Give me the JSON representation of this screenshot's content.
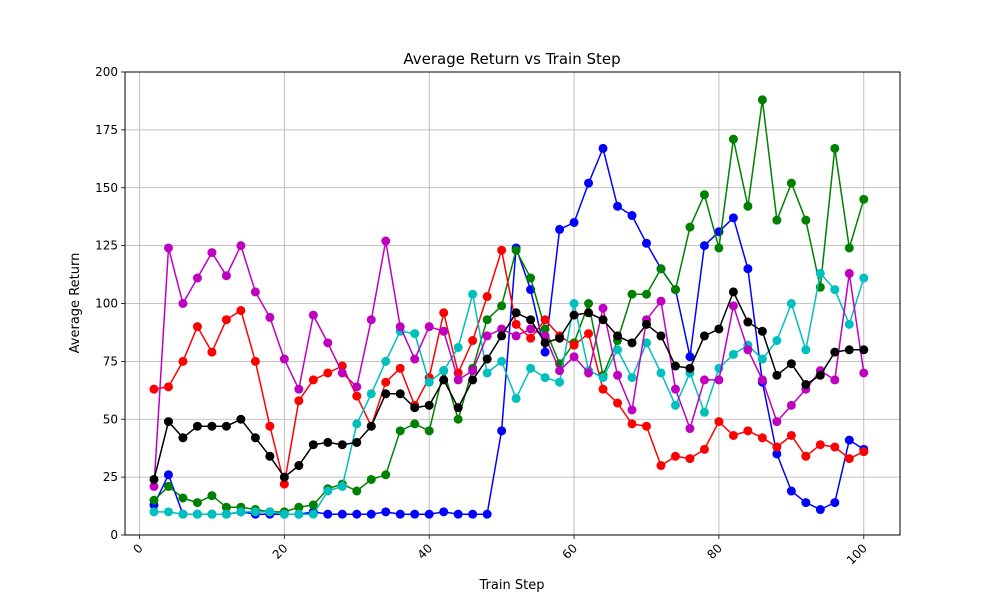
{
  "chart_data": {
    "type": "line",
    "title": "Average Return vs Train Step",
    "xlabel": "Train Step",
    "ylabel": "Average Return",
    "xlim": [
      -2,
      105
    ],
    "ylim": [
      0,
      200
    ],
    "xticks": [
      0,
      20,
      40,
      60,
      80,
      100
    ],
    "yticks": [
      0,
      25,
      50,
      75,
      100,
      125,
      150,
      175,
      200
    ],
    "grid": true,
    "x": [
      2,
      4,
      6,
      8,
      10,
      12,
      14,
      16,
      18,
      20,
      22,
      24,
      26,
      28,
      30,
      32,
      34,
      36,
      38,
      40,
      42,
      44,
      46,
      48,
      50,
      52,
      54,
      56,
      58,
      60,
      62,
      64,
      66,
      68,
      70,
      72,
      74,
      76,
      78,
      80,
      82,
      84,
      86,
      88,
      90,
      92,
      94,
      96,
      98,
      100
    ],
    "series": [
      {
        "color": "#0000ff",
        "values": [
          13,
          26,
          9,
          9,
          9,
          9,
          10,
          9,
          9,
          9,
          9,
          10,
          9,
          9,
          9,
          9,
          10,
          9,
          9,
          9,
          10,
          9,
          9,
          9,
          45,
          124,
          106,
          79,
          132,
          135,
          152,
          167,
          142,
          138,
          126,
          115,
          106,
          77,
          125,
          131,
          137,
          115,
          66,
          35,
          19,
          14,
          11,
          14,
          41,
          37
        ]
      },
      {
        "color": "#008000",
        "values": [
          15,
          21,
          16,
          14,
          17,
          12,
          12,
          11,
          10,
          10,
          12,
          13,
          20,
          22,
          19,
          24,
          26,
          45,
          48,
          45,
          71,
          50,
          72,
          93,
          99,
          123,
          111,
          89,
          74,
          83,
          100,
          69,
          84,
          104,
          104,
          115,
          106,
          133,
          147,
          124,
          171,
          142,
          188,
          136,
          152,
          136,
          107,
          167,
          124,
          145
        ]
      },
      {
        "color": "#ff0000",
        "values": [
          63,
          64,
          75,
          90,
          79,
          93,
          97,
          75,
          47,
          22,
          58,
          67,
          70,
          73,
          60,
          47,
          66,
          72,
          56,
          68,
          96,
          70,
          84,
          103,
          123,
          91,
          85,
          93,
          86,
          82,
          87,
          63,
          57,
          48,
          47,
          30,
          34,
          33,
          37,
          49,
          43,
          45,
          42,
          38,
          43,
          34,
          39,
          38,
          33,
          36
        ]
      },
      {
        "color": "#00bfbf",
        "values": [
          10,
          10,
          9,
          9,
          9,
          9,
          10,
          10,
          10,
          9,
          9,
          9,
          19,
          21,
          48,
          61,
          75,
          88,
          87,
          66,
          71,
          81,
          104,
          70,
          75,
          59,
          72,
          68,
          66,
          100,
          71,
          68,
          80,
          68,
          83,
          70,
          56,
          70,
          53,
          72,
          78,
          82,
          76,
          84,
          100,
          80,
          113,
          106,
          91,
          111
        ]
      },
      {
        "color": "#bf00bf",
        "values": [
          21,
          124,
          100,
          111,
          122,
          112,
          125,
          105,
          94,
          76,
          63,
          95,
          83,
          70,
          64,
          93,
          127,
          90,
          76,
          90,
          88,
          67,
          71,
          86,
          89,
          86,
          89,
          86,
          71,
          77,
          70,
          98,
          69,
          54,
          93,
          101,
          63,
          46,
          67,
          67,
          99,
          80,
          67,
          49,
          56,
          63,
          71,
          67,
          113,
          70
        ]
      },
      {
        "color": "#000000",
        "values": [
          24,
          49,
          42,
          47,
          47,
          47,
          50,
          42,
          34,
          25,
          30,
          39,
          40,
          39,
          40,
          47,
          61,
          61,
          55,
          56,
          67,
          55,
          67,
          76,
          86,
          96,
          93,
          83,
          85,
          95,
          96,
          93,
          86,
          83,
          91,
          86,
          73,
          72,
          86,
          89,
          105,
          92,
          88,
          69,
          74,
          65,
          69,
          79,
          80,
          80
        ]
      }
    ]
  }
}
